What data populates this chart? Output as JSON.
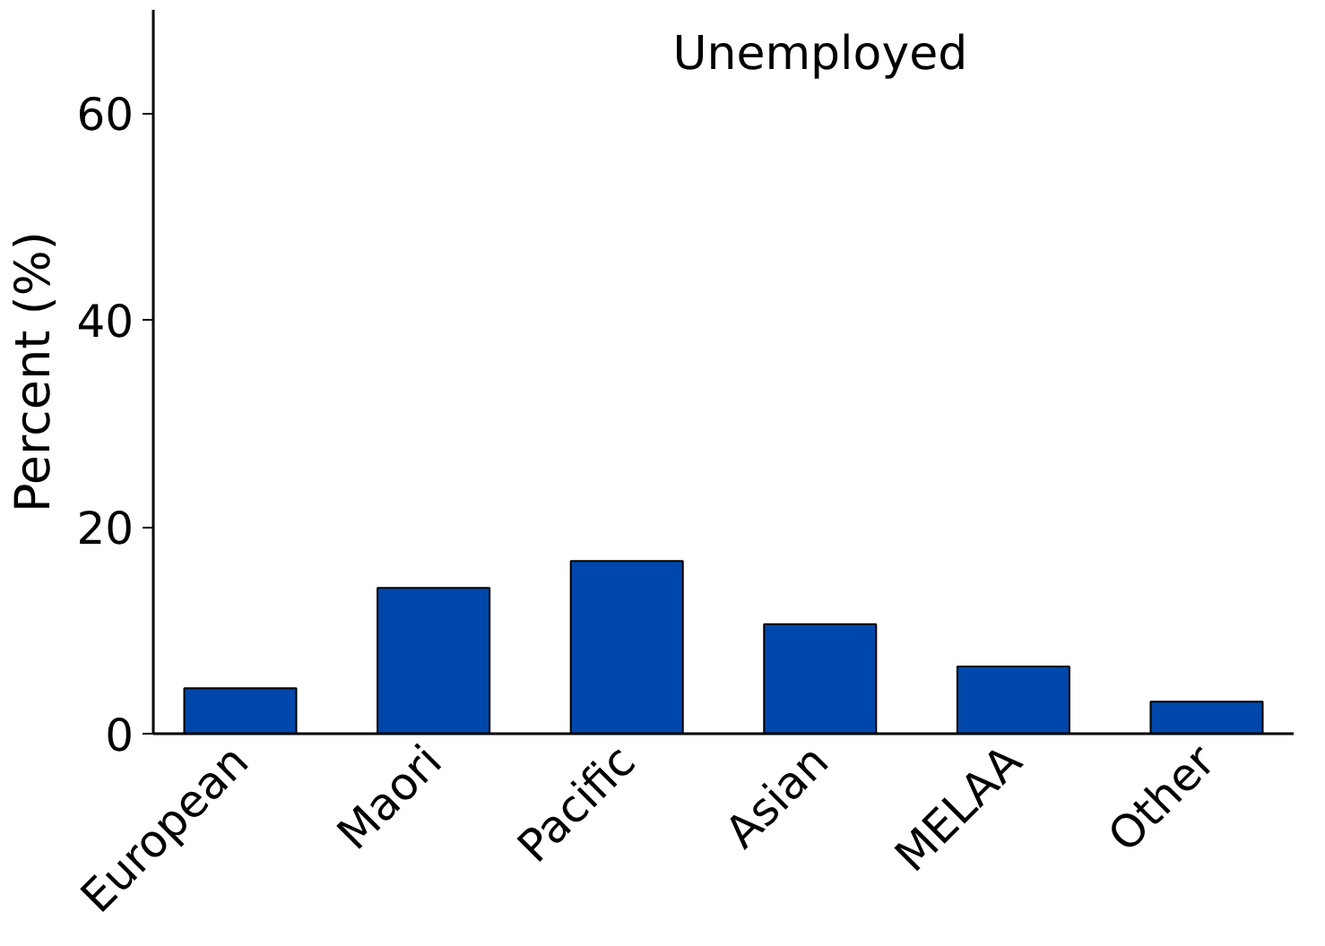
{
  "chart_data": {
    "type": "bar",
    "title": "Unemployed",
    "ylabel": "Percent (%)",
    "categories": [
      "European",
      "Maori",
      "Pacific",
      "Asian",
      "MELAA",
      "Other"
    ],
    "values": [
      4.4,
      14.1,
      16.7,
      10.6,
      6.5,
      3.1
    ],
    "color": "#0047ab",
    "ylim": [
      0,
      70
    ],
    "yticks": [
      0,
      20,
      40,
      60
    ],
    "grid": false
  }
}
